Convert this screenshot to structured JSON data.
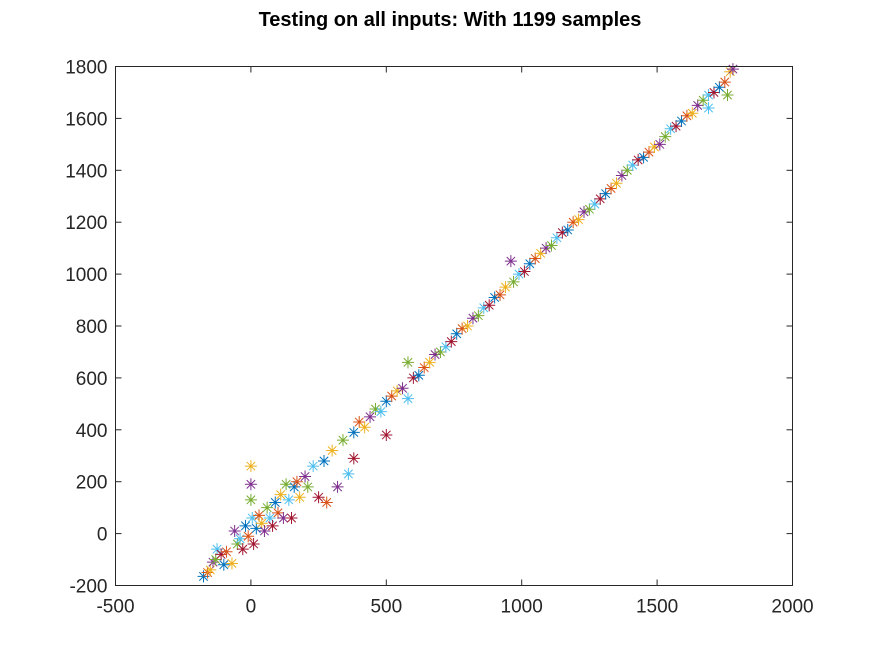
{
  "chart_data": {
    "type": "scatter",
    "title": "Testing on all inputs: With 1199 samples",
    "xlabel": "",
    "ylabel": "",
    "xlim": [
      -500,
      2000
    ],
    "ylim": [
      -200,
      1800
    ],
    "xticks": [
      -500,
      0,
      500,
      1000,
      1500,
      2000
    ],
    "yticks": [
      -200,
      0,
      200,
      400,
      600,
      800,
      1000,
      1200,
      1400,
      1600,
      1800
    ],
    "xtick_labels": [
      "-500",
      "0",
      "500",
      "1000",
      "1500",
      "2000"
    ],
    "ytick_labels": [
      "-200",
      "0",
      "200",
      "400",
      "600",
      "800",
      "1000",
      "1200",
      "1400",
      "1600",
      "1800"
    ],
    "grid": false,
    "legend": "none",
    "marker": "asterisk",
    "total_samples": 1199,
    "series_colors": [
      "#0072BD",
      "#D95319",
      "#EDB120",
      "#7E2F8E",
      "#77AC30",
      "#4DBEEE",
      "#A2142F"
    ],
    "points": [
      [
        -175,
        -165
      ],
      [
        -160,
        -150
      ],
      [
        -150,
        -140
      ],
      [
        -140,
        -110
      ],
      [
        -130,
        -100
      ],
      [
        -125,
        -60
      ],
      [
        -110,
        -80
      ],
      [
        -100,
        -120
      ],
      [
        -90,
        -70
      ],
      [
        -70,
        -115
      ],
      [
        -60,
        10
      ],
      [
        -50,
        -40
      ],
      [
        -40,
        -20
      ],
      [
        -30,
        -60
      ],
      [
        -20,
        30
      ],
      [
        -10,
        -10
      ],
      [
        0,
        260
      ],
      [
        0,
        190
      ],
      [
        0,
        130
      ],
      [
        5,
        60
      ],
      [
        10,
        -40
      ],
      [
        20,
        20
      ],
      [
        30,
        70
      ],
      [
        40,
        40
      ],
      [
        50,
        10
      ],
      [
        60,
        100
      ],
      [
        70,
        60
      ],
      [
        80,
        30
      ],
      [
        90,
        120
      ],
      [
        100,
        80
      ],
      [
        110,
        150
      ],
      [
        120,
        60
      ],
      [
        130,
        190
      ],
      [
        140,
        130
      ],
      [
        150,
        60
      ],
      [
        160,
        180
      ],
      [
        170,
        200
      ],
      [
        180,
        140
      ],
      [
        200,
        220
      ],
      [
        210,
        180
      ],
      [
        230,
        260
      ],
      [
        250,
        140
      ],
      [
        270,
        280
      ],
      [
        280,
        120
      ],
      [
        300,
        320
      ],
      [
        320,
        180
      ],
      [
        340,
        360
      ],
      [
        360,
        230
      ],
      [
        380,
        290
      ],
      [
        380,
        390
      ],
      [
        400,
        430
      ],
      [
        420,
        410
      ],
      [
        440,
        450
      ],
      [
        460,
        480
      ],
      [
        480,
        470
      ],
      [
        500,
        380
      ],
      [
        500,
        510
      ],
      [
        520,
        530
      ],
      [
        540,
        550
      ],
      [
        560,
        560
      ],
      [
        580,
        660
      ],
      [
        580,
        520
      ],
      [
        600,
        600
      ],
      [
        620,
        610
      ],
      [
        640,
        640
      ],
      [
        660,
        660
      ],
      [
        680,
        690
      ],
      [
        700,
        700
      ],
      [
        720,
        720
      ],
      [
        740,
        740
      ],
      [
        760,
        770
      ],
      [
        780,
        790
      ],
      [
        800,
        800
      ],
      [
        820,
        830
      ],
      [
        840,
        840
      ],
      [
        860,
        870
      ],
      [
        880,
        880
      ],
      [
        900,
        910
      ],
      [
        920,
        920
      ],
      [
        940,
        950
      ],
      [
        960,
        1050
      ],
      [
        970,
        970
      ],
      [
        990,
        1000
      ],
      [
        1010,
        1010
      ],
      [
        1030,
        1040
      ],
      [
        1050,
        1060
      ],
      [
        1070,
        1080
      ],
      [
        1090,
        1100
      ],
      [
        1110,
        1110
      ],
      [
        1130,
        1140
      ],
      [
        1150,
        1160
      ],
      [
        1170,
        1170
      ],
      [
        1190,
        1200
      ],
      [
        1210,
        1210
      ],
      [
        1230,
        1240
      ],
      [
        1250,
        1250
      ],
      [
        1270,
        1270
      ],
      [
        1290,
        1290
      ],
      [
        1310,
        1310
      ],
      [
        1330,
        1330
      ],
      [
        1350,
        1350
      ],
      [
        1370,
        1380
      ],
      [
        1390,
        1400
      ],
      [
        1410,
        1420
      ],
      [
        1430,
        1440
      ],
      [
        1450,
        1450
      ],
      [
        1470,
        1470
      ],
      [
        1490,
        1490
      ],
      [
        1510,
        1500
      ],
      [
        1530,
        1530
      ],
      [
        1550,
        1560
      ],
      [
        1570,
        1570
      ],
      [
        1590,
        1590
      ],
      [
        1610,
        1610
      ],
      [
        1630,
        1620
      ],
      [
        1650,
        1650
      ],
      [
        1670,
        1670
      ],
      [
        1690,
        1690
      ],
      [
        1710,
        1700
      ],
      [
        1730,
        1720
      ],
      [
        1750,
        1740
      ],
      [
        1770,
        1780
      ],
      [
        1780,
        1790
      ],
      [
        1760,
        1690
      ],
      [
        1690,
        1640
      ]
    ]
  }
}
